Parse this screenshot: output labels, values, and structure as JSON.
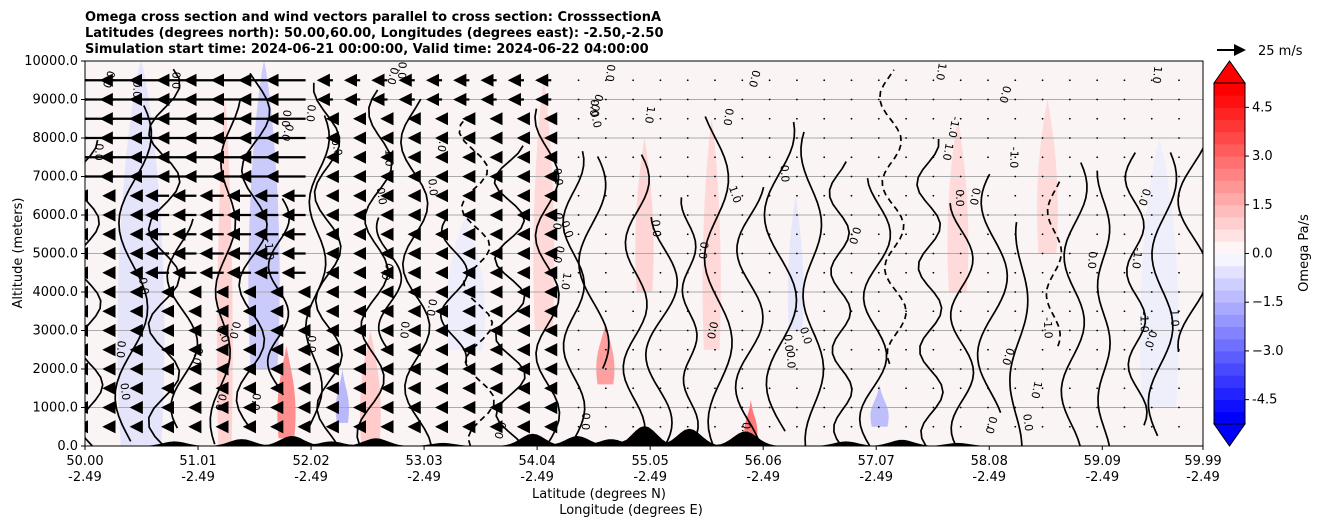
{
  "chart_data": {
    "type": "heatmap",
    "title_lines": [
      "Omega cross section and wind vectors parallel to cross section: CrosssectionA",
      "Latitudes (degrees north): 50.00,60.00, Longitudes (degrees east): -2.50,-2.50",
      "Simulation start time: 2024-06-21 00:00:00, Valid time: 2024-06-22 04:00:00"
    ],
    "ylabel": "Altitude (meters)",
    "xlabel_lat": "Latitude (degrees N)",
    "xlabel_lon": "Longitude (degrees E)",
    "ylim": [
      0,
      10000
    ],
    "y_ticks": [
      "0.0",
      "1000.0",
      "2000.0",
      "3000.0",
      "4000.0",
      "5000.0",
      "6000.0",
      "7000.0",
      "8000.0",
      "9000.0",
      "10000.0"
    ],
    "x_range": [
      50.0,
      59.99
    ],
    "x_ticks": [
      {
        "lat": "50.00",
        "lon": "-2.49"
      },
      {
        "lat": "51.01",
        "lon": "-2.49"
      },
      {
        "lat": "52.02",
        "lon": "-2.49"
      },
      {
        "lat": "53.03",
        "lon": "-2.49"
      },
      {
        "lat": "54.04",
        "lon": "-2.49"
      },
      {
        "lat": "55.05",
        "lon": "-2.49"
      },
      {
        "lat": "56.06",
        "lon": "-2.49"
      },
      {
        "lat": "57.07",
        "lon": "-2.49"
      },
      {
        "lat": "58.08",
        "lon": "-2.49"
      },
      {
        "lat": "59.09",
        "lon": "-2.49"
      },
      {
        "lat": "59.99",
        "lon": "-2.49"
      }
    ],
    "colorbar": {
      "label": "Omega Pa/s",
      "range": [
        -5.25,
        5.25
      ],
      "step": 0.375,
      "ticks": [
        "-4.5",
        "−3.0",
        "−1.5",
        "0.0",
        "1.5",
        "3.0",
        "4.5"
      ],
      "low_color": "#0000ff",
      "high_color": "#ff0000",
      "extend": "both"
    },
    "contour_labels": [
      "0.0",
      "1.0",
      "-1.0"
    ],
    "quiver_key": "25 m/s",
    "terrain_color": "#000000"
  }
}
